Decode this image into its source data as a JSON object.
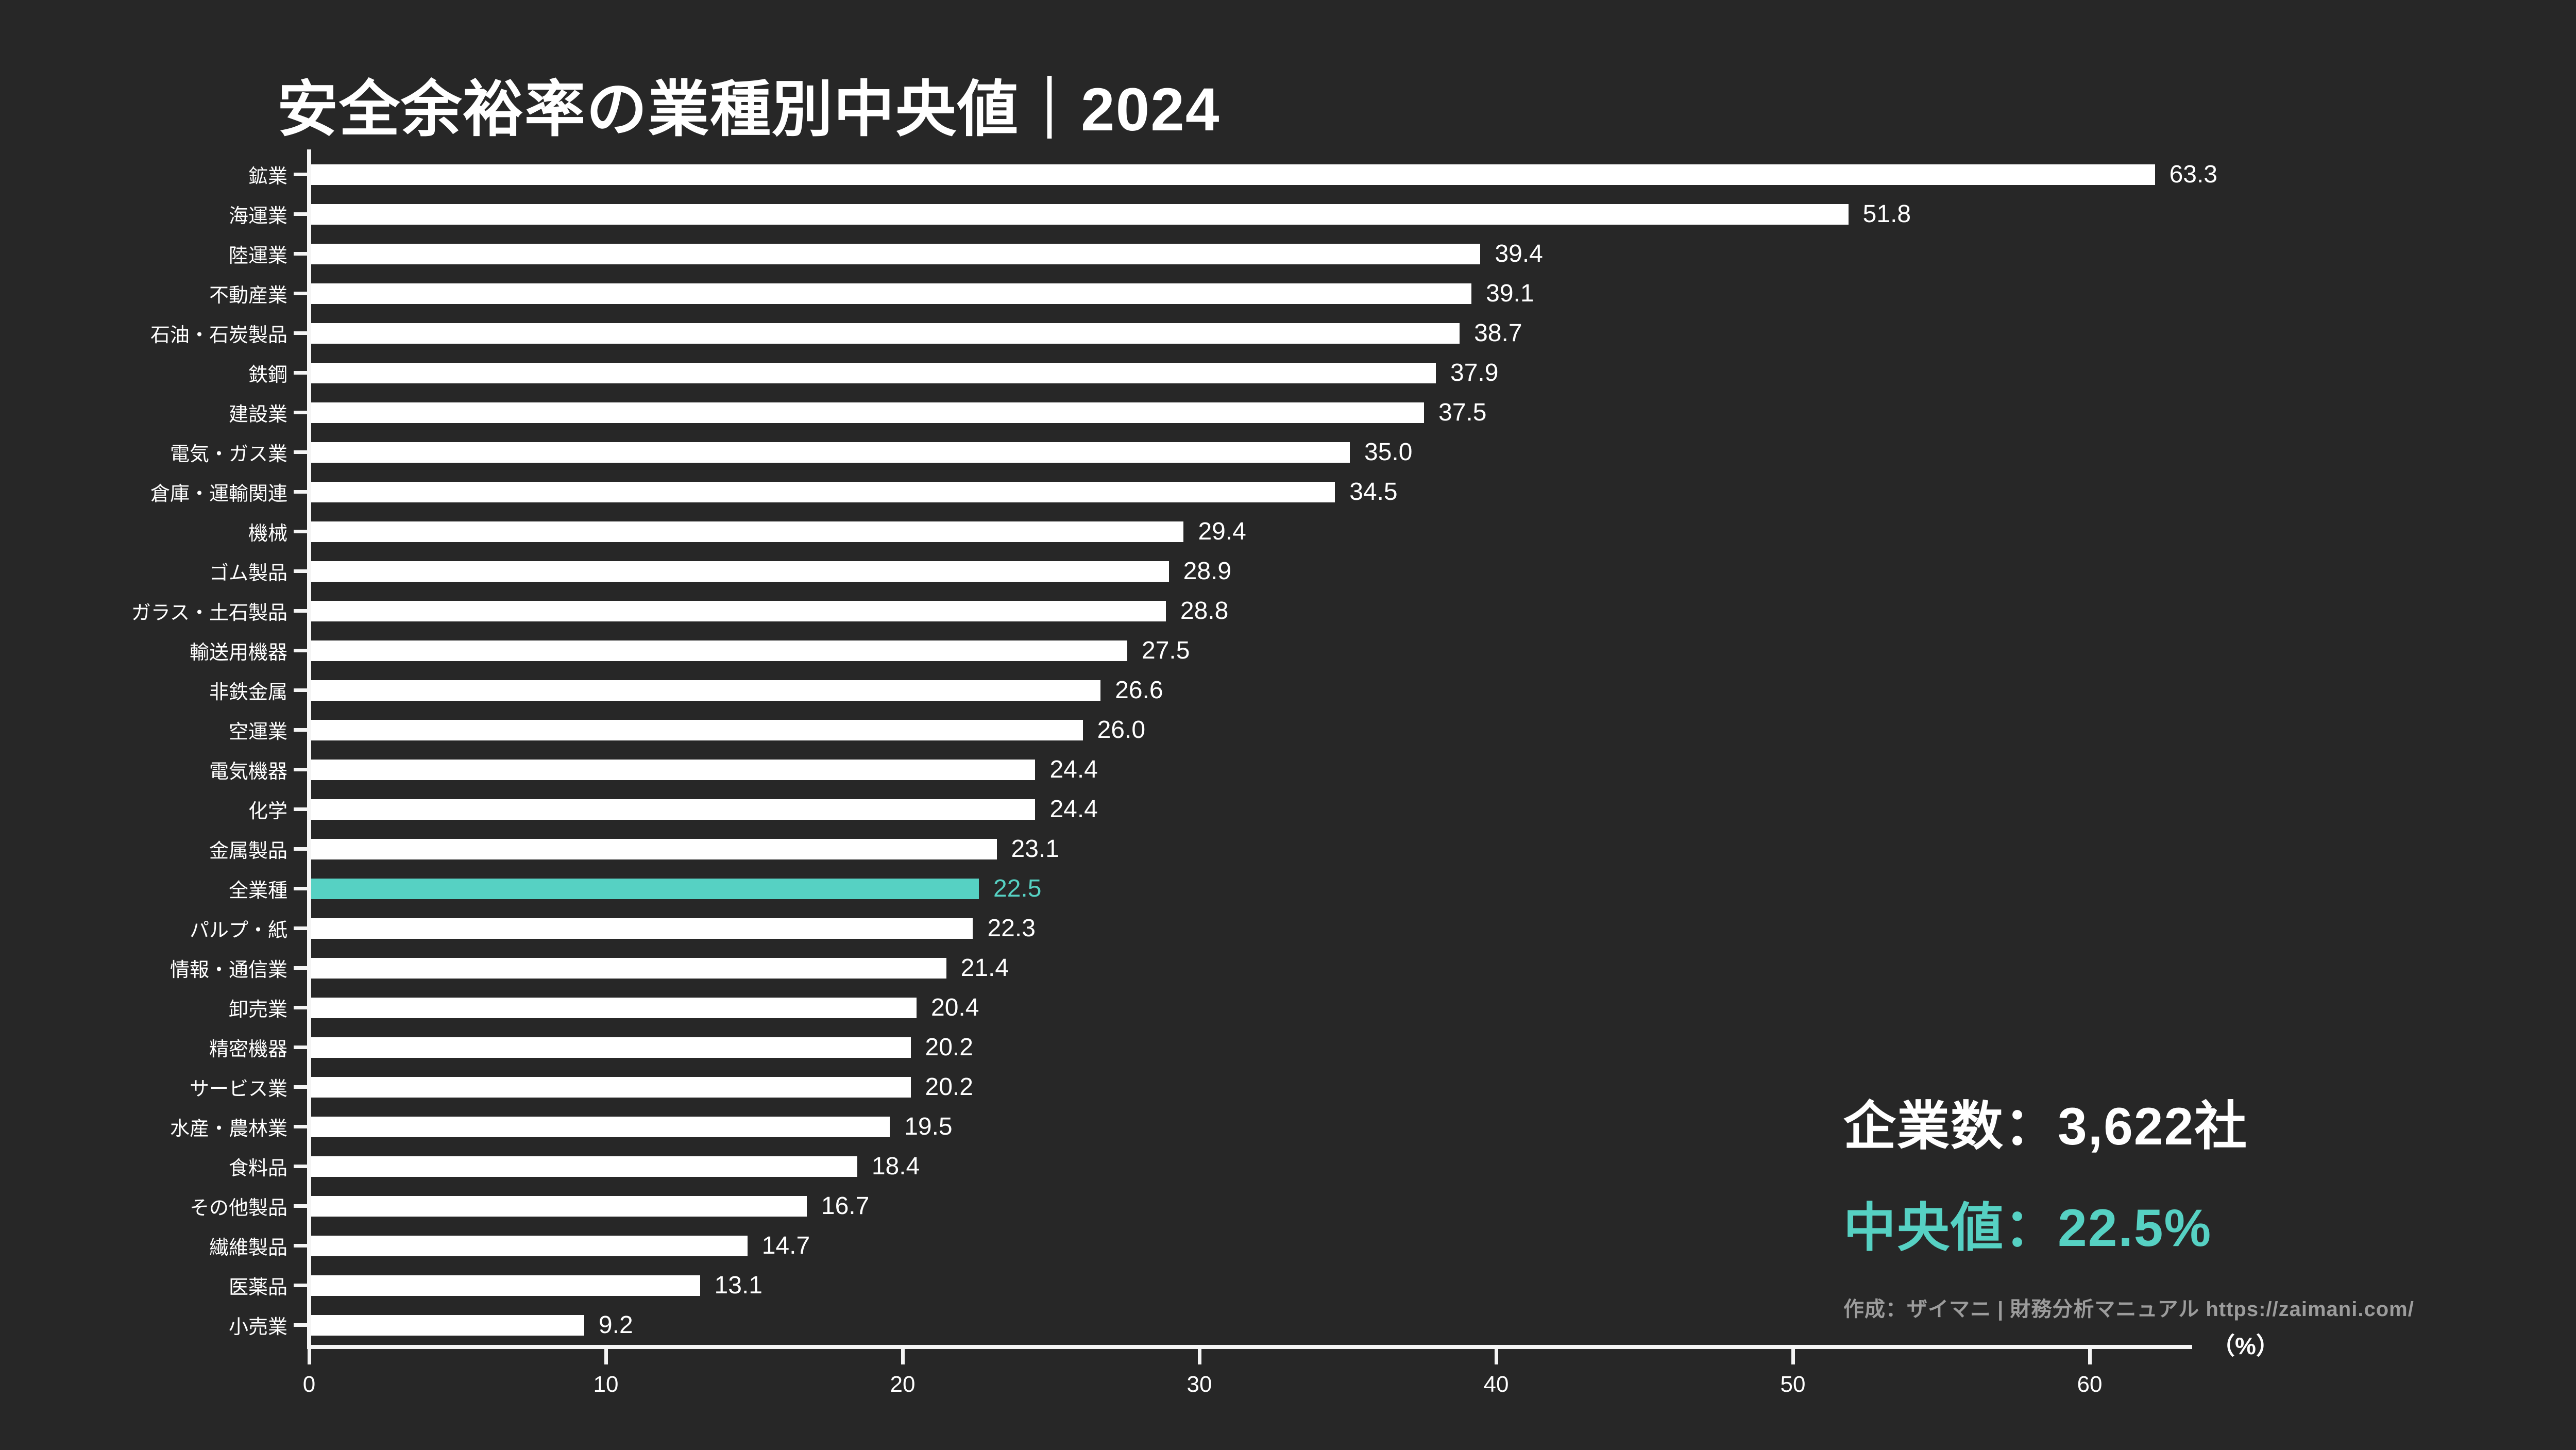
{
  "title": "安全余裕率の業種別中央値｜2024",
  "chart_data": {
    "type": "bar",
    "orientation": "horizontal",
    "title": "安全余裕率の業種別中央値｜2024",
    "categories": [
      "鉱業",
      "海運業",
      "陸運業",
      "不動産業",
      "石油・石炭製品",
      "鉄鋼",
      "建設業",
      "電気・ガス業",
      "倉庫・運輸関連",
      "機械",
      "ゴム製品",
      "ガラス・土石製品",
      "輸送用機器",
      "非鉄金属",
      "空運業",
      "電気機器",
      "化学",
      "金属製品",
      "全業種",
      "パルプ・紙",
      "情報・通信業",
      "卸売業",
      "精密機器",
      "サービス業",
      "水産・農林業",
      "食料品",
      "その他製品",
      "繊維製品",
      "医薬品",
      "小売業"
    ],
    "values": [
      63.3,
      51.8,
      39.4,
      39.1,
      38.7,
      37.9,
      37.5,
      35.0,
      34.5,
      29.4,
      28.9,
      28.8,
      27.5,
      26.6,
      26.0,
      24.4,
      24.4,
      23.1,
      22.5,
      22.3,
      21.4,
      20.4,
      20.2,
      20.2,
      19.5,
      18.4,
      16.7,
      14.7,
      13.1,
      9.2
    ],
    "highlight_index": 18,
    "highlight_category": "全業種",
    "xlabel": "（%）",
    "xticks": [
      0,
      10,
      20,
      30,
      40,
      50,
      60
    ],
    "xlim": [
      0,
      63.5
    ],
    "grid": false,
    "legend": "none",
    "colors": {
      "background": "#272727",
      "bar": "#ffffff",
      "highlight": "#56d1c3",
      "axis": "#f5f5f5",
      "text": "#ffffff",
      "credit": "#9c9c9c"
    }
  },
  "stats": {
    "company_count_label": "企業数：3,622社",
    "median_label": "中央値：22.5%",
    "credit": "作成：ザイマニ | 財務分析マニュアル https://zaimani.com/"
  }
}
